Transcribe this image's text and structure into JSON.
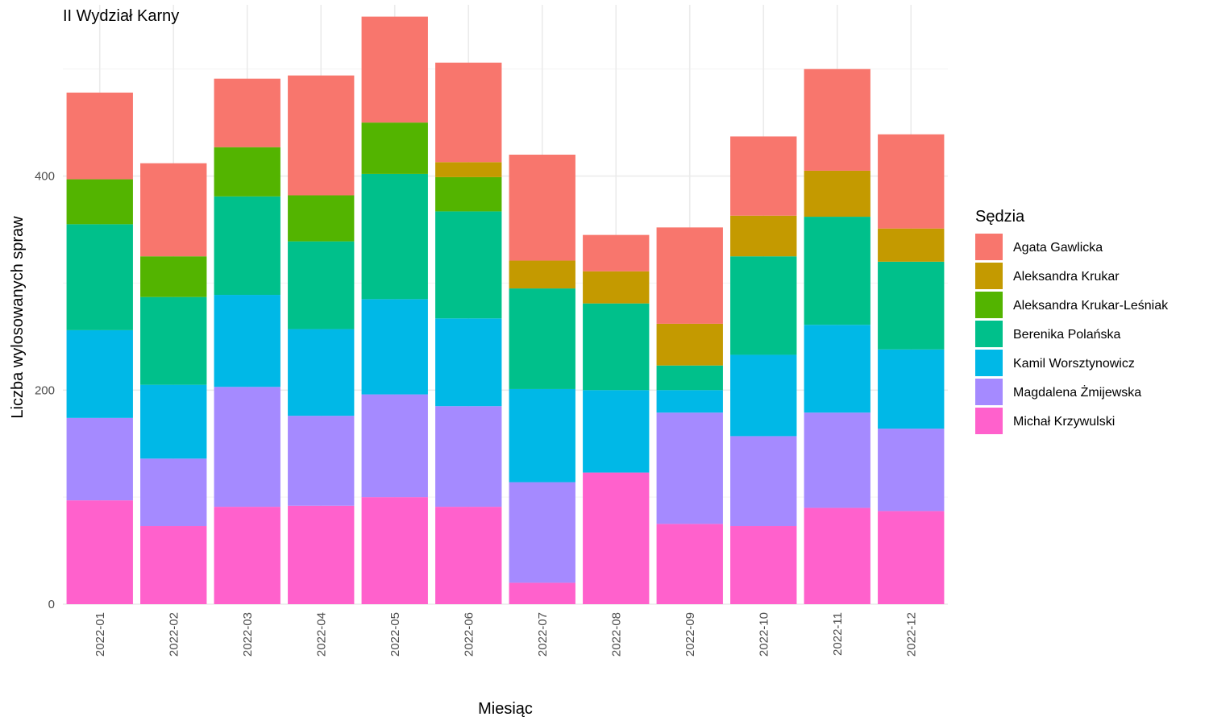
{
  "chart_data": {
    "type": "bar",
    "stacked": true,
    "title": "II Wydział Karny",
    "xlabel": "Miesiąc",
    "ylabel": "Liczba wylosowanych spraw",
    "ylim": [
      0,
      560
    ],
    "yticks": [
      0,
      200,
      400
    ],
    "grid": true,
    "legend_title": "Sędzia",
    "legend_position": "right",
    "categories": [
      "2022-01",
      "2022-02",
      "2022-03",
      "2022-04",
      "2022-05",
      "2022-06",
      "2022-07",
      "2022-08",
      "2022-09",
      "2022-10",
      "2022-11",
      "2022-12"
    ],
    "series": [
      {
        "name": "Michał Krzywulski",
        "color": "#FF61CC",
        "values": [
          97,
          73,
          91,
          92,
          100,
          91,
          20,
          123,
          75,
          73,
          90,
          87
        ]
      },
      {
        "name": "Magdalena Żmijewska",
        "color": "#A58AFF",
        "values": [
          77,
          63,
          112,
          84,
          96,
          94,
          94,
          0,
          104,
          84,
          89,
          77
        ]
      },
      {
        "name": "Kamil Worsztynowicz",
        "color": "#00B8E7",
        "values": [
          82,
          69,
          86,
          81,
          89,
          82,
          87,
          77,
          21,
          76,
          82,
          74
        ]
      },
      {
        "name": "Berenika Polańska",
        "color": "#00C08B",
        "values": [
          99,
          82,
          92,
          82,
          117,
          100,
          94,
          81,
          23,
          92,
          101,
          82
        ]
      },
      {
        "name": "Aleksandra Krukar-Leśniak",
        "color": "#53B400",
        "values": [
          42,
          38,
          46,
          43,
          48,
          32,
          0,
          0,
          0,
          0,
          0,
          0
        ]
      },
      {
        "name": "Aleksandra Krukar",
        "color": "#C49A00",
        "values": [
          0,
          0,
          0,
          0,
          0,
          14,
          26,
          30,
          39,
          38,
          43,
          31
        ]
      },
      {
        "name": "Agata Gawlicka",
        "color": "#F8766D",
        "values": [
          81,
          87,
          64,
          112,
          99,
          93,
          99,
          34,
          90,
          74,
          95,
          88
        ]
      }
    ]
  }
}
